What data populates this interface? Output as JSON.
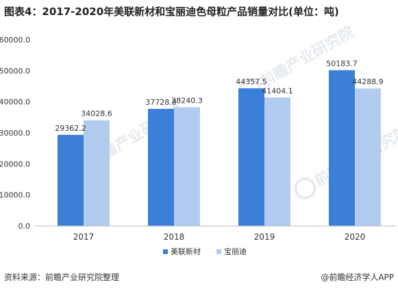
{
  "title": "图表4：2017-2020年美联新材和宝丽迪色母粒产品销量对比(单位：吨)",
  "source": "资料来源：前瞻产业研究院整理",
  "credit": "@前瞻经济学人APP",
  "watermark": {
    "text": "前瞻产业研究院"
  },
  "colors": {
    "series1": "#3b7fd9",
    "series2": "#b2ccf0",
    "axis": "#bbbbbb",
    "label": "#333333"
  },
  "chart_data": {
    "type": "bar",
    "categories": [
      "2017",
      "2018",
      "2019",
      "2020"
    ],
    "series": [
      {
        "name": "美联新材",
        "values": [
          29362.2,
          37728.8,
          44357.5,
          50183.7
        ]
      },
      {
        "name": "宝丽迪",
        "values": [
          34028.6,
          38240.3,
          41404.1,
          44288.9
        ]
      }
    ],
    "ylim": [
      0,
      60000
    ],
    "yticks": [
      "0.0",
      "10000.0",
      "20000.0",
      "30000.0",
      "40000.0",
      "50000.0",
      "60000.0"
    ],
    "value_labels": [
      [
        "29362.2",
        "37728.8",
        "44357.5",
        "50183.7"
      ],
      [
        "34028.6",
        "38240.3",
        "41404.1",
        "44288.9"
      ]
    ],
    "legend": "bottom",
    "grid": false,
    "xlabel": "",
    "ylabel": ""
  }
}
